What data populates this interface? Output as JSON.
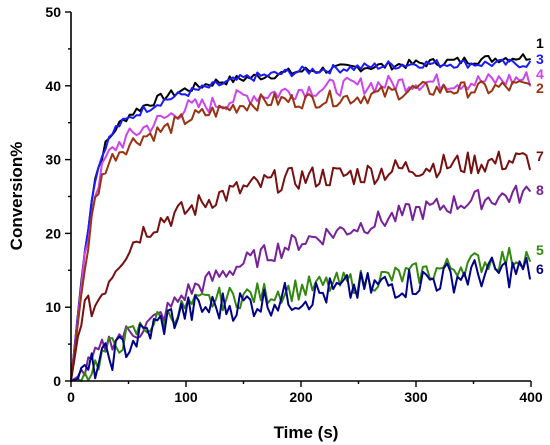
{
  "chart_data": {
    "type": "line",
    "xlabel": "Time (s)",
    "ylabel": "Conversion%",
    "xlim": [
      0,
      400
    ],
    "ylim": [
      0,
      50
    ],
    "xticks": [
      "0",
      "100",
      "200",
      "300",
      "400"
    ],
    "yticks": [
      "0",
      "10",
      "20",
      "30",
      "40",
      "50"
    ],
    "grid": false,
    "legend": "inline labels at right end of each curve",
    "x": [
      0,
      10,
      20,
      30,
      40,
      50,
      60,
      80,
      100,
      125,
      150,
      175,
      200,
      250,
      300,
      350,
      400
    ],
    "series": [
      {
        "name": "1",
        "color": "#000000",
        "values": [
          0,
          15,
          27,
          32,
          34.5,
          36,
          37,
          38.5,
          39.5,
          40.5,
          41,
          41.5,
          42,
          42.5,
          43,
          43.5,
          44
        ]
      },
      {
        "name": "3",
        "color": "#1a1aff",
        "values": [
          0,
          15,
          27,
          32,
          34.5,
          35.5,
          36.5,
          38,
          39,
          40,
          41,
          41.5,
          42,
          42.5,
          43,
          43,
          43
        ]
      },
      {
        "name": "4",
        "color": "#cc44ee",
        "values": [
          0,
          14,
          25,
          30,
          32,
          33,
          34,
          35.5,
          37,
          37.5,
          38.5,
          39,
          39.5,
          40,
          40.5,
          40.5,
          41
        ]
      },
      {
        "name": "2",
        "color": "#993311",
        "values": [
          0,
          13,
          24,
          29,
          31,
          32,
          33,
          34,
          35.5,
          36.5,
          37.5,
          38,
          38,
          38.5,
          39.5,
          39.5,
          40
        ]
      },
      {
        "name": "7",
        "color": "#771111",
        "values": [
          0,
          10,
          10,
          13,
          16,
          18,
          20,
          22,
          23,
          25,
          26,
          27,
          27.5,
          28,
          29,
          29.5,
          30
        ]
      },
      {
        "name": "8",
        "color": "#772299",
        "values": [
          0,
          1,
          3,
          5,
          6,
          6.5,
          7,
          9,
          12,
          14,
          16,
          17.5,
          19,
          21,
          23,
          24.5,
          25.5
        ]
      },
      {
        "name": "5",
        "color": "#338811",
        "values": [
          0,
          0.5,
          2,
          4,
          5,
          6,
          7,
          8.5,
          10,
          11,
          11.5,
          12,
          12.5,
          13.5,
          14.5,
          16,
          17
        ]
      },
      {
        "name": "6",
        "color": "#000088",
        "values": [
          0,
          0.5,
          2,
          3,
          4,
          5,
          6,
          8,
          9.5,
          10,
          10.5,
          11,
          11.5,
          12.5,
          13.5,
          14.5,
          15
        ]
      }
    ]
  }
}
